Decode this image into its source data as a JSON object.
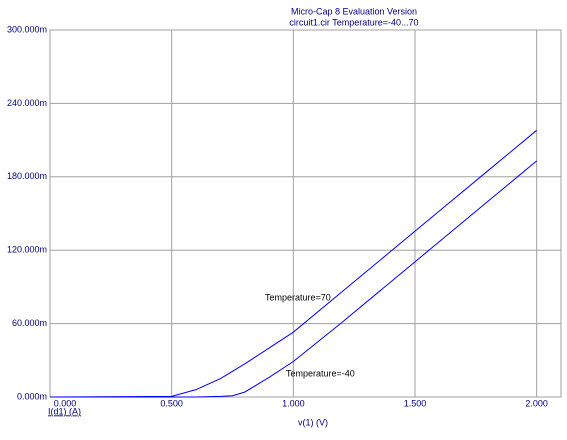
{
  "chart_data": {
    "type": "line",
    "title": "Micro-Cap 8 Evaluation Version",
    "subtitle": "circuit1.cir Temperature=-40...70",
    "x_label": "v(1) (V)",
    "y_label": "I(d1) (A)",
    "x": [
      0,
      0.5,
      0.6,
      0.7,
      0.75,
      0.8,
      0.9,
      1.0,
      1.2,
      1.4,
      1.6,
      1.8,
      2.0
    ],
    "series": [
      {
        "name": "Temperature=70",
        "color": "#0000ff",
        "values": [
          0,
          0.0005,
          0.006,
          0.015,
          0.021,
          0.027,
          0.04,
          0.053,
          0.086,
          0.119,
          0.152,
          0.185,
          0.218
        ]
      },
      {
        "name": "Temperature=-40",
        "color": "#0000ff",
        "values": [
          0,
          0,
          0,
          0.0005,
          0.001,
          0.004,
          0.016,
          0.029,
          0.061,
          0.094,
          0.127,
          0.16,
          0.193
        ]
      }
    ],
    "xlim": [
      0,
      2.1
    ],
    "ylim": [
      0,
      0.3
    ],
    "xticks": [
      {
        "value": 0,
        "label": "0.000"
      },
      {
        "value": 0.5,
        "label": "0.500"
      },
      {
        "value": 1,
        "label": "1.000"
      },
      {
        "value": 1.5,
        "label": "1.500"
      },
      {
        "value": 2,
        "label": "2.000"
      }
    ],
    "yticks": [
      {
        "value": 0,
        "label": "0.000m"
      },
      {
        "value": 0.06,
        "label": "60.000m"
      },
      {
        "value": 0.12,
        "label": "120.000m"
      },
      {
        "value": 0.18,
        "label": "180.000m"
      },
      {
        "value": 0.24,
        "label": "240.000m"
      },
      {
        "value": 0.3,
        "label": "300.000m"
      }
    ],
    "grid": true
  }
}
